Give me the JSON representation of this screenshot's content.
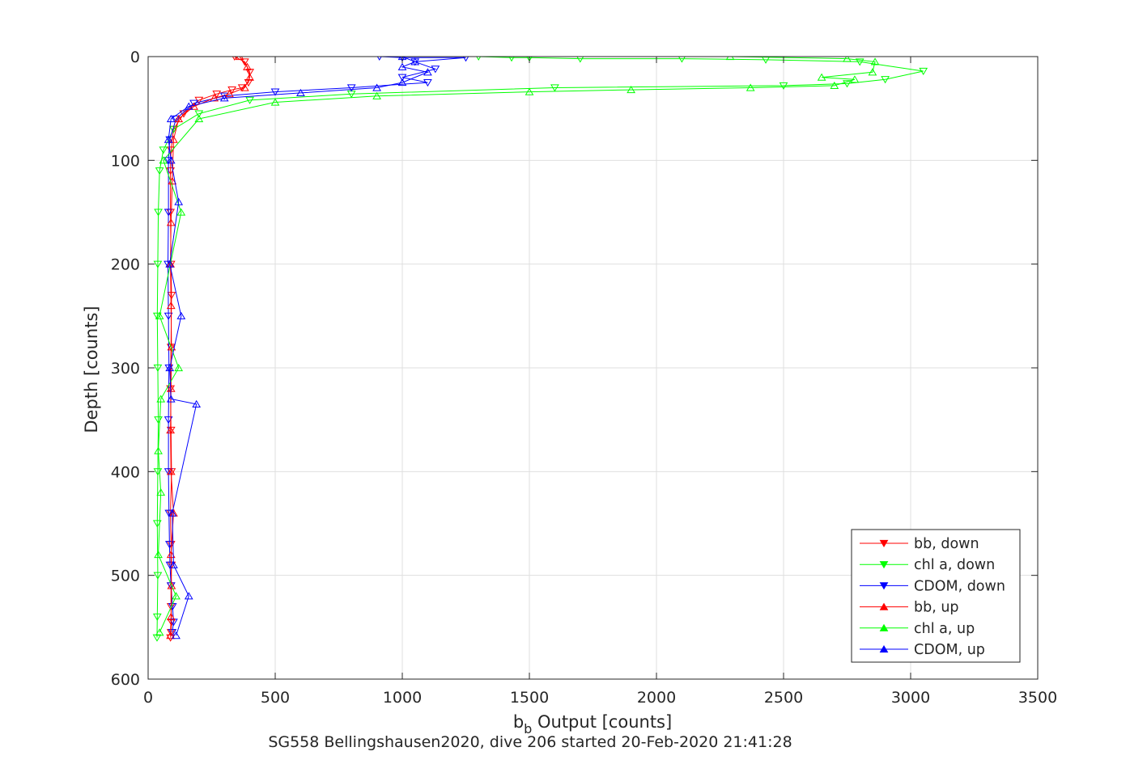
{
  "figure": {
    "subtitle": "SG558 Bellingshausen2020, dive 206 started 20-Feb-2020 21:41:28"
  },
  "chart_data": {
    "type": "line",
    "title": "",
    "xlabel_main": "b",
    "xlabel_sub": "b",
    "xlabel_rest": " Output [counts]",
    "ylabel": "Depth [counts]",
    "xlim": [
      0,
      3500
    ],
    "ylim": [
      0,
      600
    ],
    "y_reversed": true,
    "xticks": [
      0,
      500,
      1000,
      1500,
      2000,
      2500,
      3000,
      3500
    ],
    "yticks": [
      0,
      100,
      200,
      300,
      400,
      500,
      600
    ],
    "xtick_labels": [
      "0",
      "500",
      "1000",
      "1500",
      "2000",
      "2500",
      "3000",
      "3500"
    ],
    "ytick_labels": [
      "0",
      "100",
      "200",
      "300",
      "400",
      "500",
      "600"
    ],
    "grid": true,
    "legend_position": "bottom-right",
    "series": [
      {
        "name": "bb, down",
        "color": "#ff0000",
        "marker": "triangle-down",
        "x": [
          340,
          380,
          400,
          395,
          370,
          330,
          270,
          200,
          140,
          100,
          90,
          88,
          88,
          90,
          92,
          90,
          88,
          90,
          92,
          88,
          90,
          92,
          90,
          90,
          92,
          90,
          88
        ],
        "y": [
          0,
          5,
          15,
          25,
          30,
          32,
          36,
          42,
          55,
          70,
          90,
          110,
          150,
          200,
          230,
          280,
          320,
          360,
          400,
          440,
          470,
          490,
          510,
          530,
          545,
          555,
          560
        ]
      },
      {
        "name": "chl a, down",
        "color": "#00ff00",
        "marker": "triangle-down",
        "x": [
          1300,
          1430,
          1500,
          1700,
          2100,
          2430,
          2800,
          3050,
          2900,
          2750,
          2500,
          1600,
          800,
          400,
          200,
          100,
          60,
          45,
          40,
          38,
          36,
          38,
          40,
          38,
          36,
          38,
          36,
          35
        ],
        "y": [
          0,
          1,
          1,
          2,
          2,
          3,
          5,
          14,
          22,
          26,
          28,
          30,
          36,
          42,
          55,
          70,
          90,
          110,
          150,
          200,
          250,
          300,
          350,
          400,
          450,
          500,
          540,
          560
        ]
      },
      {
        "name": "CDOM, down",
        "color": "#0000ff",
        "marker": "triangle-down",
        "x": [
          910,
          1000,
          1250,
          1050,
          1130,
          1000,
          1100,
          800,
          500,
          300,
          180,
          110,
          85,
          80,
          80,
          78,
          80,
          82,
          80,
          80,
          82,
          84,
          86,
          90,
          96,
          100,
          95
        ],
        "y": [
          0,
          1,
          1,
          5,
          12,
          20,
          25,
          30,
          34,
          38,
          45,
          60,
          80,
          100,
          150,
          200,
          250,
          300,
          350,
          400,
          440,
          470,
          490,
          510,
          530,
          545,
          555
        ]
      },
      {
        "name": "bb, up",
        "color": "#ff0000",
        "marker": "triangle-up",
        "x": [
          88,
          90,
          92,
          90,
          100,
          90,
          88,
          90,
          92,
          90,
          88,
          90,
          95,
          100,
          120,
          180,
          260,
          320,
          380,
          400,
          390,
          360
        ],
        "y": [
          558,
          540,
          510,
          480,
          440,
          400,
          360,
          320,
          280,
          240,
          200,
          160,
          120,
          80,
          60,
          48,
          40,
          36,
          30,
          20,
          10,
          0
        ]
      },
      {
        "name": "chl a, up",
        "color": "#00ff00",
        "marker": "triangle-up",
        "x": [
          45,
          110,
          40,
          50,
          40,
          50,
          120,
          45,
          130,
          60,
          200,
          500,
          900,
          1500,
          1900,
          2370,
          2700,
          2780,
          2650,
          2850,
          2860,
          2750,
          2290
        ],
        "y": [
          555,
          520,
          480,
          420,
          380,
          330,
          300,
          250,
          150,
          100,
          60,
          44,
          38,
          34,
          32,
          30,
          28,
          22,
          20,
          15,
          5,
          2,
          0
        ]
      },
      {
        "name": "CDOM, up",
        "color": "#0000ff",
        "marker": "triangle-up",
        "x": [
          110,
          160,
          100,
          95,
          190,
          90,
          85,
          130,
          85,
          120,
          90,
          80,
          90,
          160,
          300,
          600,
          900,
          1000,
          1100,
          1000,
          1050,
          1000
        ],
        "y": [
          558,
          520,
          490,
          440,
          335,
          330,
          300,
          250,
          200,
          140,
          100,
          80,
          60,
          48,
          40,
          35,
          30,
          25,
          15,
          10,
          5,
          0
        ]
      }
    ]
  }
}
